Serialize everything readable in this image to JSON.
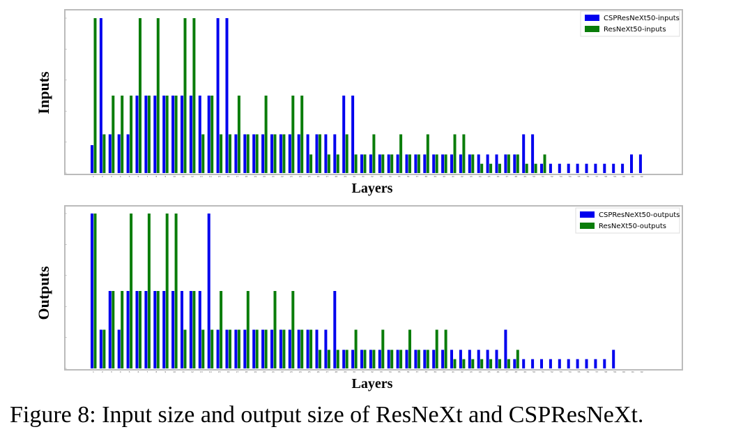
{
  "caption": "Figure 8: Input size and output size of ResNeXt and CSPResNeXt.",
  "colors": {
    "csp": "#0000ee",
    "resnext": "#0a7d0a",
    "frame": "#bbbbbb"
  },
  "chart_data": [
    {
      "type": "bar",
      "ylabel": "Inputs",
      "xlabel": "Layers",
      "legend_position": "top-right",
      "ylim": [
        0,
        100
      ],
      "x": [
        1,
        2,
        3,
        4,
        5,
        6,
        7,
        8,
        9,
        10,
        11,
        12,
        13,
        14,
        15,
        16,
        17,
        18,
        19,
        20,
        21,
        22,
        23,
        24,
        25,
        26,
        27,
        28,
        29,
        30,
        31,
        32,
        33,
        34,
        35,
        36,
        37,
        38,
        39,
        40,
        41,
        42,
        43,
        44,
        45,
        46,
        47,
        48,
        49,
        50,
        51,
        52,
        53,
        54,
        55,
        56,
        57,
        58,
        59,
        60,
        61,
        62
      ],
      "series": [
        {
          "name": "CSPResNeXt50-inputs",
          "values": [
            18,
            100,
            25,
            25,
            25,
            50,
            50,
            50,
            50,
            50,
            50,
            50,
            50,
            50,
            100,
            100,
            25,
            25,
            25,
            25,
            25,
            25,
            25,
            25,
            25,
            25,
            25,
            25,
            50,
            50,
            12,
            12,
            12,
            12,
            12,
            12,
            12,
            12,
            12,
            12,
            12,
            12,
            12,
            12,
            12,
            12,
            12,
            12,
            25,
            25,
            6,
            6,
            6,
            6,
            6,
            6,
            6,
            6,
            6,
            6,
            12,
            12
          ]
        },
        {
          "name": "ResNeXt50-inputs",
          "values": [
            100,
            25,
            50,
            50,
            50,
            100,
            50,
            100,
            50,
            50,
            100,
            100,
            25,
            50,
            25,
            25,
            50,
            25,
            25,
            50,
            25,
            25,
            50,
            50,
            12,
            25,
            12,
            12,
            25,
            12,
            12,
            25,
            12,
            12,
            25,
            12,
            12,
            25,
            12,
            12,
            25,
            25,
            12,
            6,
            6,
            6,
            12,
            12,
            6,
            6,
            12,
            0,
            0,
            0,
            0,
            0,
            0,
            0,
            0,
            0,
            0,
            0
          ]
        }
      ]
    },
    {
      "type": "bar",
      "ylabel": "Outputs",
      "xlabel": "Layers",
      "legend_position": "top-right",
      "ylim": [
        0,
        100
      ],
      "x": [
        1,
        2,
        3,
        4,
        5,
        6,
        7,
        8,
        9,
        10,
        11,
        12,
        13,
        14,
        15,
        16,
        17,
        18,
        19,
        20,
        21,
        22,
        23,
        24,
        25,
        26,
        27,
        28,
        29,
        30,
        31,
        32,
        33,
        34,
        35,
        36,
        37,
        38,
        39,
        40,
        41,
        42,
        43,
        44,
        45,
        46,
        47,
        48,
        49,
        50,
        51,
        52,
        53,
        54,
        55,
        56,
        57,
        58,
        59,
        60,
        61,
        62
      ],
      "series": [
        {
          "name": "CSPResNeXt50-outputs",
          "values": [
            100,
            25,
            50,
            25,
            50,
            50,
            50,
            50,
            50,
            50,
            50,
            50,
            50,
            100,
            25,
            25,
            25,
            25,
            25,
            25,
            25,
            25,
            25,
            25,
            25,
            25,
            25,
            50,
            12,
            12,
            12,
            12,
            12,
            12,
            12,
            12,
            12,
            12,
            12,
            12,
            12,
            12,
            12,
            12,
            12,
            12,
            25,
            6,
            6,
            6,
            6,
            6,
            6,
            6,
            6,
            6,
            6,
            6,
            12,
            0,
            0,
            0
          ]
        },
        {
          "name": "ResNeXt50-outputs",
          "values": [
            100,
            25,
            50,
            50,
            100,
            50,
            100,
            50,
            100,
            100,
            25,
            50,
            25,
            25,
            50,
            25,
            25,
            50,
            25,
            25,
            50,
            25,
            50,
            25,
            25,
            12,
            12,
            12,
            12,
            25,
            12,
            12,
            25,
            12,
            12,
            25,
            12,
            12,
            25,
            25,
            6,
            6,
            6,
            6,
            6,
            6,
            6,
            12,
            0,
            0,
            0,
            0,
            0,
            0,
            0,
            0,
            0,
            0,
            0,
            0,
            0,
            0
          ]
        }
      ]
    }
  ]
}
